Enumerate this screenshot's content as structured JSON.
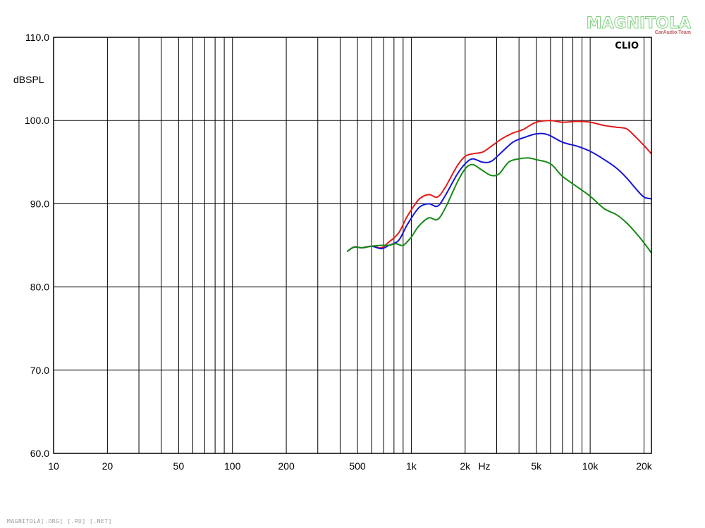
{
  "chart_data": {
    "type": "line",
    "xscale": "log",
    "xlim": [
      10,
      22000
    ],
    "ylim": [
      60,
      110
    ],
    "ylabel": "dBSPL",
    "xunit": "Hz",
    "grid": true,
    "y_ticks": [
      {
        "value": 110,
        "label": "110.0"
      },
      {
        "value": 100,
        "label": "100.0"
      },
      {
        "value": 90,
        "label": "90.0"
      },
      {
        "value": 80,
        "label": "80.0"
      },
      {
        "value": 70,
        "label": "70.0"
      },
      {
        "value": 60,
        "label": "60.0"
      }
    ],
    "x_ticks": [
      {
        "value": 10,
        "label": "10"
      },
      {
        "value": 20,
        "label": "20"
      },
      {
        "value": 50,
        "label": "50"
      },
      {
        "value": 100,
        "label": "100"
      },
      {
        "value": 200,
        "label": "200"
      },
      {
        "value": 500,
        "label": "500"
      },
      {
        "value": 1000,
        "label": "1k"
      },
      {
        "value": 2000,
        "label": "2k"
      },
      {
        "value": 5000,
        "label": "5k"
      },
      {
        "value": 10000,
        "label": "10k"
      },
      {
        "value": 20000,
        "label": "20k"
      }
    ],
    "series": [
      {
        "color": "#e31a1a",
        "points": [
          [
            440,
            84.3
          ],
          [
            480,
            84.8
          ],
          [
            530,
            84.7
          ],
          [
            600,
            84.9
          ],
          [
            680,
            84.7
          ],
          [
            750,
            85.4
          ],
          [
            850,
            86.5
          ],
          [
            950,
            88.5
          ],
          [
            1100,
            90.5
          ],
          [
            1250,
            91.1
          ],
          [
            1400,
            90.8
          ],
          [
            1550,
            92.0
          ],
          [
            1800,
            94.5
          ],
          [
            2000,
            95.7
          ],
          [
            2200,
            96.0
          ],
          [
            2500,
            96.2
          ],
          [
            2800,
            96.9
          ],
          [
            3200,
            97.8
          ],
          [
            3700,
            98.5
          ],
          [
            4200,
            98.9
          ],
          [
            5000,
            99.8
          ],
          [
            6000,
            100.0
          ],
          [
            7000,
            99.8
          ],
          [
            8500,
            99.9
          ],
          [
            10000,
            99.8
          ],
          [
            12000,
            99.4
          ],
          [
            14000,
            99.2
          ],
          [
            16000,
            99.0
          ],
          [
            18000,
            98.0
          ],
          [
            20000,
            97.0
          ],
          [
            22000,
            96.0
          ]
        ]
      },
      {
        "color": "#1414d4",
        "points": [
          [
            440,
            84.3
          ],
          [
            480,
            84.8
          ],
          [
            530,
            84.7
          ],
          [
            600,
            84.9
          ],
          [
            680,
            84.6
          ],
          [
            750,
            85.0
          ],
          [
            850,
            85.6
          ],
          [
            950,
            87.5
          ],
          [
            1100,
            89.5
          ],
          [
            1250,
            90.0
          ],
          [
            1400,
            89.7
          ],
          [
            1550,
            91.0
          ],
          [
            1800,
            93.5
          ],
          [
            2000,
            94.8
          ],
          [
            2200,
            95.4
          ],
          [
            2500,
            95.0
          ],
          [
            2800,
            95.1
          ],
          [
            3200,
            96.2
          ],
          [
            3700,
            97.4
          ],
          [
            4200,
            97.9
          ],
          [
            5000,
            98.4
          ],
          [
            5800,
            98.3
          ],
          [
            7000,
            97.4
          ],
          [
            8500,
            96.9
          ],
          [
            10000,
            96.3
          ],
          [
            12000,
            95.3
          ],
          [
            14000,
            94.3
          ],
          [
            16000,
            93.1
          ],
          [
            18000,
            91.8
          ],
          [
            20000,
            90.8
          ],
          [
            22000,
            90.6
          ]
        ]
      },
      {
        "color": "#168a16",
        "points": [
          [
            440,
            84.3
          ],
          [
            480,
            84.8
          ],
          [
            530,
            84.7
          ],
          [
            600,
            84.9
          ],
          [
            680,
            85.0
          ],
          [
            750,
            85.0
          ],
          [
            820,
            85.2
          ],
          [
            900,
            85.0
          ],
          [
            1000,
            86.0
          ],
          [
            1100,
            87.3
          ],
          [
            1250,
            88.3
          ],
          [
            1400,
            88.1
          ],
          [
            1550,
            89.5
          ],
          [
            1800,
            92.5
          ],
          [
            2000,
            94.2
          ],
          [
            2200,
            94.7
          ],
          [
            2500,
            94.0
          ],
          [
            2800,
            93.4
          ],
          [
            3100,
            93.6
          ],
          [
            3500,
            95.0
          ],
          [
            4000,
            95.4
          ],
          [
            4500,
            95.5
          ],
          [
            5000,
            95.3
          ],
          [
            6000,
            94.8
          ],
          [
            7000,
            93.3
          ],
          [
            8500,
            92.0
          ],
          [
            10000,
            90.9
          ],
          [
            12000,
            89.4
          ],
          [
            14000,
            88.7
          ],
          [
            16000,
            87.7
          ],
          [
            18000,
            86.5
          ],
          [
            20000,
            85.3
          ],
          [
            22000,
            84.1
          ]
        ]
      }
    ]
  },
  "branding": {
    "clio": "CLIO",
    "watermark": "MAGNITOLA",
    "watermark_sub": "CarAudio Team",
    "footer": "MAGNITOLA[.ORG] [.RU] [.NET]"
  }
}
